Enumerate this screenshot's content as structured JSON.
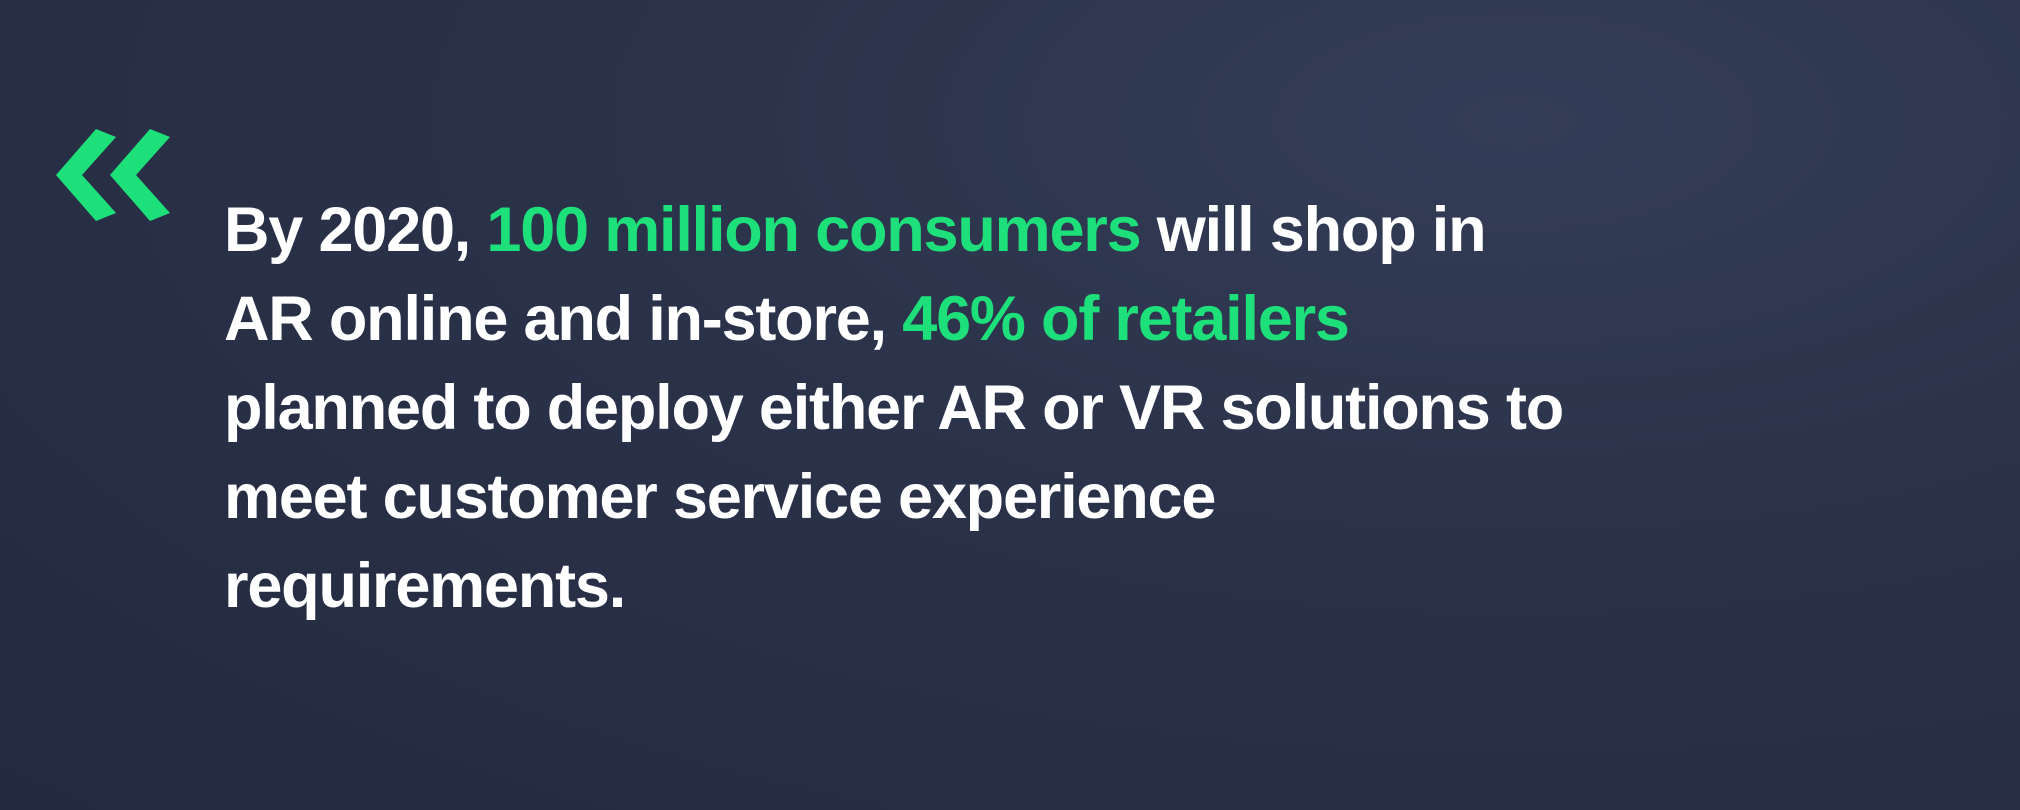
{
  "quote": {
    "lines": [
      [
        {
          "text": "By 2020, ",
          "color": "#ffffff"
        },
        {
          "text": "100 million consumers",
          "color": "#1ee07b"
        },
        {
          "text": " will shop in",
          "color": "#ffffff"
        }
      ],
      [
        {
          "text": "AR online and in-store, ",
          "color": "#ffffff"
        },
        {
          "text": "46% of retailers",
          "color": "#1ee07b"
        }
      ],
      [
        {
          "text": "planned to deploy either AR or VR solutions to",
          "color": "#ffffff"
        }
      ],
      [
        {
          "text": "meet customer service experience",
          "color": "#ffffff"
        }
      ],
      [
        {
          "text": "requirements.",
          "color": "#ffffff"
        }
      ]
    ]
  }
}
